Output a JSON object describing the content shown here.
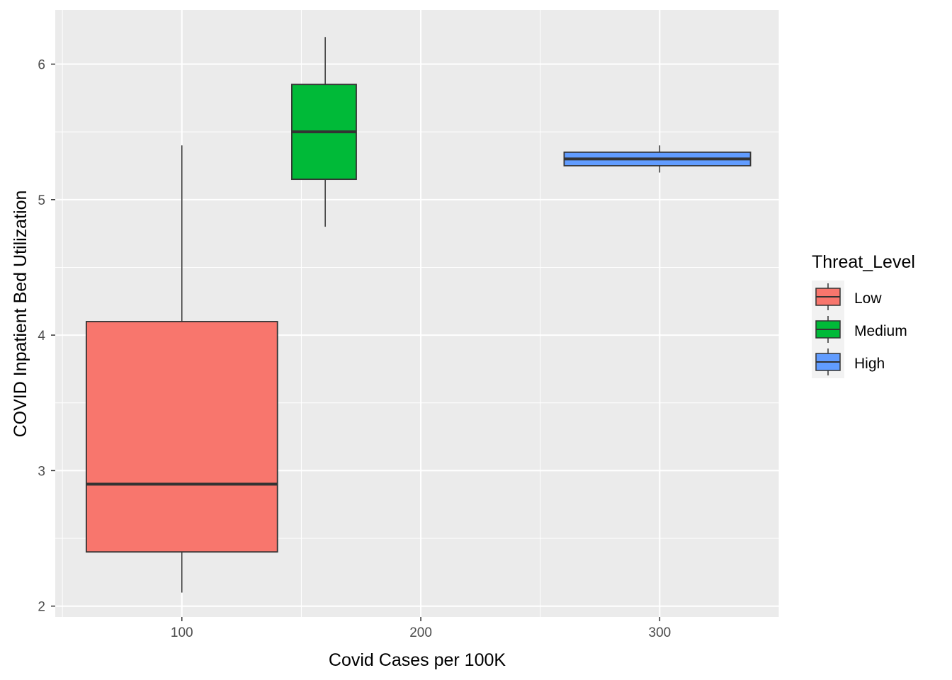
{
  "chart_data": {
    "type": "boxplot",
    "xlabel": "Covid Cases per 100K",
    "ylabel": "COVID Inpatient Bed Utilization",
    "xlim": [
      47,
      350
    ],
    "ylim": [
      1.92,
      6.4
    ],
    "x_ticks": [
      100,
      200,
      300
    ],
    "x_tick_labels": [
      "100",
      "200",
      "300"
    ],
    "y_ticks": [
      2,
      3,
      4,
      5,
      6
    ],
    "y_tick_labels": [
      "2",
      "3",
      "4",
      "5",
      "6"
    ],
    "x_minor_ticks": [
      50,
      150,
      250,
      350
    ],
    "y_minor_ticks": [
      2.5,
      3.5,
      4.5,
      5.5
    ],
    "grid": true,
    "background": "#ebebeb",
    "legend": {
      "title": "Threat_Level",
      "position": "right",
      "entries": [
        {
          "label": "Low",
          "color": "#f8766d"
        },
        {
          "label": "Medium",
          "color": "#00ba38"
        },
        {
          "label": "High",
          "color": "#619cff"
        }
      ]
    },
    "series": [
      {
        "name": "Low",
        "color": "#f8766d",
        "x": 100,
        "x_range": [
          60,
          140
        ],
        "min": 2.1,
        "q1": 2.4,
        "median": 2.9,
        "q3": 4.1,
        "max": 5.4
      },
      {
        "name": "Medium",
        "color": "#00ba38",
        "x": 160,
        "x_range": [
          146,
          173
        ],
        "min": 4.8,
        "q1": 5.15,
        "median": 5.5,
        "q3": 5.85,
        "max": 6.2
      },
      {
        "name": "High",
        "color": "#619cff",
        "x": 300,
        "x_range": [
          260,
          338
        ],
        "min": 5.2,
        "q1": 5.25,
        "median": 5.3,
        "q3": 5.35,
        "max": 5.4
      }
    ]
  }
}
